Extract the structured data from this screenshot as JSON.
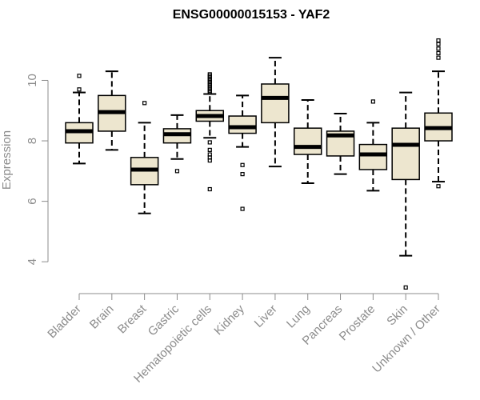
{
  "chart_data": {
    "type": "boxplot",
    "title": "ENSG00000015153 - YAF2",
    "xlabel": "",
    "ylabel": "Expression",
    "ylim": [
      3,
      11.6
    ],
    "yticks": [
      4,
      6,
      8,
      10
    ],
    "grid": false,
    "colors": {
      "box_fill": "#ede6cf",
      "stroke": "#000000",
      "axis": "#8c8c8c"
    },
    "categories": [
      "Bladder",
      "Brain",
      "Breast",
      "Gastric",
      "Hematopoietic cells",
      "Kidney",
      "Liver",
      "Lung",
      "Pancreas",
      "Prostate",
      "Skin",
      "Unknown / Other"
    ],
    "boxes": [
      {
        "name": "Bladder",
        "whisker_low": 7.25,
        "q1": 7.93,
        "median": 8.32,
        "q3": 8.6,
        "whisker_high": 9.6,
        "outliers": [
          9.7,
          10.15
        ]
      },
      {
        "name": "Brain",
        "whisker_low": 7.7,
        "q1": 8.32,
        "median": 8.95,
        "q3": 9.5,
        "whisker_high": 10.3,
        "outliers": []
      },
      {
        "name": "Breast",
        "whisker_low": 5.6,
        "q1": 6.55,
        "median": 7.05,
        "q3": 7.45,
        "whisker_high": 8.6,
        "outliers": [
          9.25
        ]
      },
      {
        "name": "Gastric",
        "whisker_low": 7.4,
        "q1": 7.93,
        "median": 8.22,
        "q3": 8.4,
        "whisker_high": 8.85,
        "outliers": [
          7.0
        ]
      },
      {
        "name": "Hematopoietic cells",
        "whisker_low": 8.1,
        "q1": 8.65,
        "median": 8.82,
        "q3": 9.0,
        "whisker_high": 9.55,
        "outliers": [
          6.4,
          7.35,
          7.45,
          7.55,
          7.7,
          7.95,
          9.6,
          9.65,
          9.7,
          9.75,
          9.8,
          9.85,
          9.9,
          9.95,
          10.0,
          10.05,
          10.1,
          10.15,
          10.2
        ]
      },
      {
        "name": "Kidney",
        "whisker_low": 7.8,
        "q1": 8.25,
        "median": 8.45,
        "q3": 8.82,
        "whisker_high": 9.5,
        "outliers": [
          5.75,
          6.9,
          7.2
        ]
      },
      {
        "name": "Liver",
        "whisker_low": 7.15,
        "q1": 8.6,
        "median": 9.42,
        "q3": 9.88,
        "whisker_high": 10.75,
        "outliers": []
      },
      {
        "name": "Lung",
        "whisker_low": 6.6,
        "q1": 7.55,
        "median": 7.8,
        "q3": 8.42,
        "whisker_high": 9.35,
        "outliers": []
      },
      {
        "name": "Pancreas",
        "whisker_low": 6.9,
        "q1": 7.5,
        "median": 8.18,
        "q3": 8.32,
        "whisker_high": 8.9,
        "outliers": []
      },
      {
        "name": "Prostate",
        "whisker_low": 6.35,
        "q1": 7.05,
        "median": 7.55,
        "q3": 7.88,
        "whisker_high": 8.6,
        "outliers": [
          9.3
        ]
      },
      {
        "name": "Skin",
        "whisker_low": 4.2,
        "q1": 6.72,
        "median": 7.87,
        "q3": 8.42,
        "whisker_high": 9.6,
        "outliers": [
          3.15
        ]
      },
      {
        "name": "Unknown / Other",
        "whisker_low": 6.65,
        "q1": 8.0,
        "median": 8.42,
        "q3": 8.92,
        "whisker_high": 10.3,
        "outliers": [
          6.5,
          10.75,
          10.9,
          11.05,
          11.2,
          11.32
        ]
      }
    ]
  }
}
